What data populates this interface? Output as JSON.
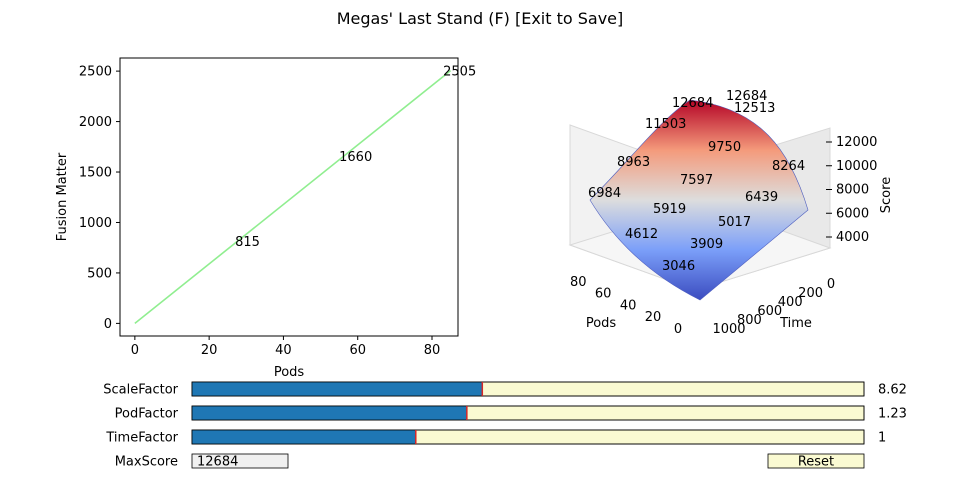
{
  "window": {
    "title": "Megas' Last Stand (F) [Exit to Save]"
  },
  "chart_data": [
    {
      "type": "line",
      "xlabel": "Pods",
      "ylabel": "Fusion Matter",
      "xlim": [
        -4,
        87
      ],
      "ylim": [
        -125,
        2630
      ],
      "xticks": [
        0,
        20,
        40,
        60,
        80
      ],
      "yticks": [
        0,
        500,
        1000,
        1500,
        2000,
        2500
      ],
      "line_color": "#90ee90",
      "series": [
        {
          "x": [
            0,
            85
          ],
          "y": [
            0,
            2505
          ]
        }
      ],
      "annotations": [
        {
          "x": 27,
          "y": 815,
          "text": "815"
        },
        {
          "x": 55,
          "y": 1660,
          "text": "1660"
        },
        {
          "x": 83,
          "y": 2505,
          "text": "2505"
        }
      ]
    },
    {
      "type": "surface",
      "colormap": "coolwarm",
      "xlabel": "Pods",
      "ylabel": "Time",
      "zlabel": "Score",
      "x_range": [
        0,
        85
      ],
      "y_range": [
        0,
        1000
      ],
      "z_range": [
        3046,
        12684
      ],
      "xticks": [
        0,
        20,
        40,
        60,
        80
      ],
      "yticks": [
        0,
        200,
        400,
        600,
        800,
        1000
      ],
      "zticks": [
        4000,
        6000,
        8000,
        10000,
        12000
      ],
      "annotations": [
        {
          "pods": 85,
          "time": 0,
          "text": "12684"
        },
        {
          "pods": 85,
          "time": 0,
          "text": "12684"
        },
        {
          "pods": 85,
          "time": 250,
          "text": "12513"
        },
        {
          "pods": 85,
          "time": 500,
          "text": "8264"
        },
        {
          "pods": 55,
          "time": 0,
          "text": "11503"
        },
        {
          "pods": 55,
          "time": 250,
          "text": "9750"
        },
        {
          "pods": 55,
          "time": 500,
          "text": "6439"
        },
        {
          "pods": 27,
          "time": 0,
          "text": "8963"
        },
        {
          "pods": 27,
          "time": 250,
          "text": "7597"
        },
        {
          "pods": 27,
          "time": 500,
          "text": "5017"
        },
        {
          "pods": 0,
          "time": 0,
          "text": "6984"
        },
        {
          "pods": 0,
          "time": 250,
          "text": "5919"
        },
        {
          "pods": 0,
          "time": 500,
          "text": "3909"
        },
        {
          "pods": 0,
          "time": 750,
          "text": "4612"
        },
        {
          "pods": 0,
          "time": 1000,
          "text": "3046"
        }
      ]
    }
  ],
  "controls": {
    "sliders": [
      {
        "label": "ScaleFactor",
        "value_text": "8.62",
        "fill": 0.432
      },
      {
        "label": "PodFactor",
        "value_text": "1.23",
        "fill": 0.409
      },
      {
        "label": "TimeFactor",
        "value_text": "1",
        "fill": 0.333
      }
    ],
    "maxscore": {
      "label": "MaxScore",
      "value": "12684"
    },
    "reset_label": "Reset",
    "colors": {
      "slider_fill": "#1f77b4",
      "slider_track": "#fafad2",
      "slider_marker": "#d62728",
      "button_bg": "#fafad2",
      "textbox_bg": "#f0f0f0"
    }
  }
}
